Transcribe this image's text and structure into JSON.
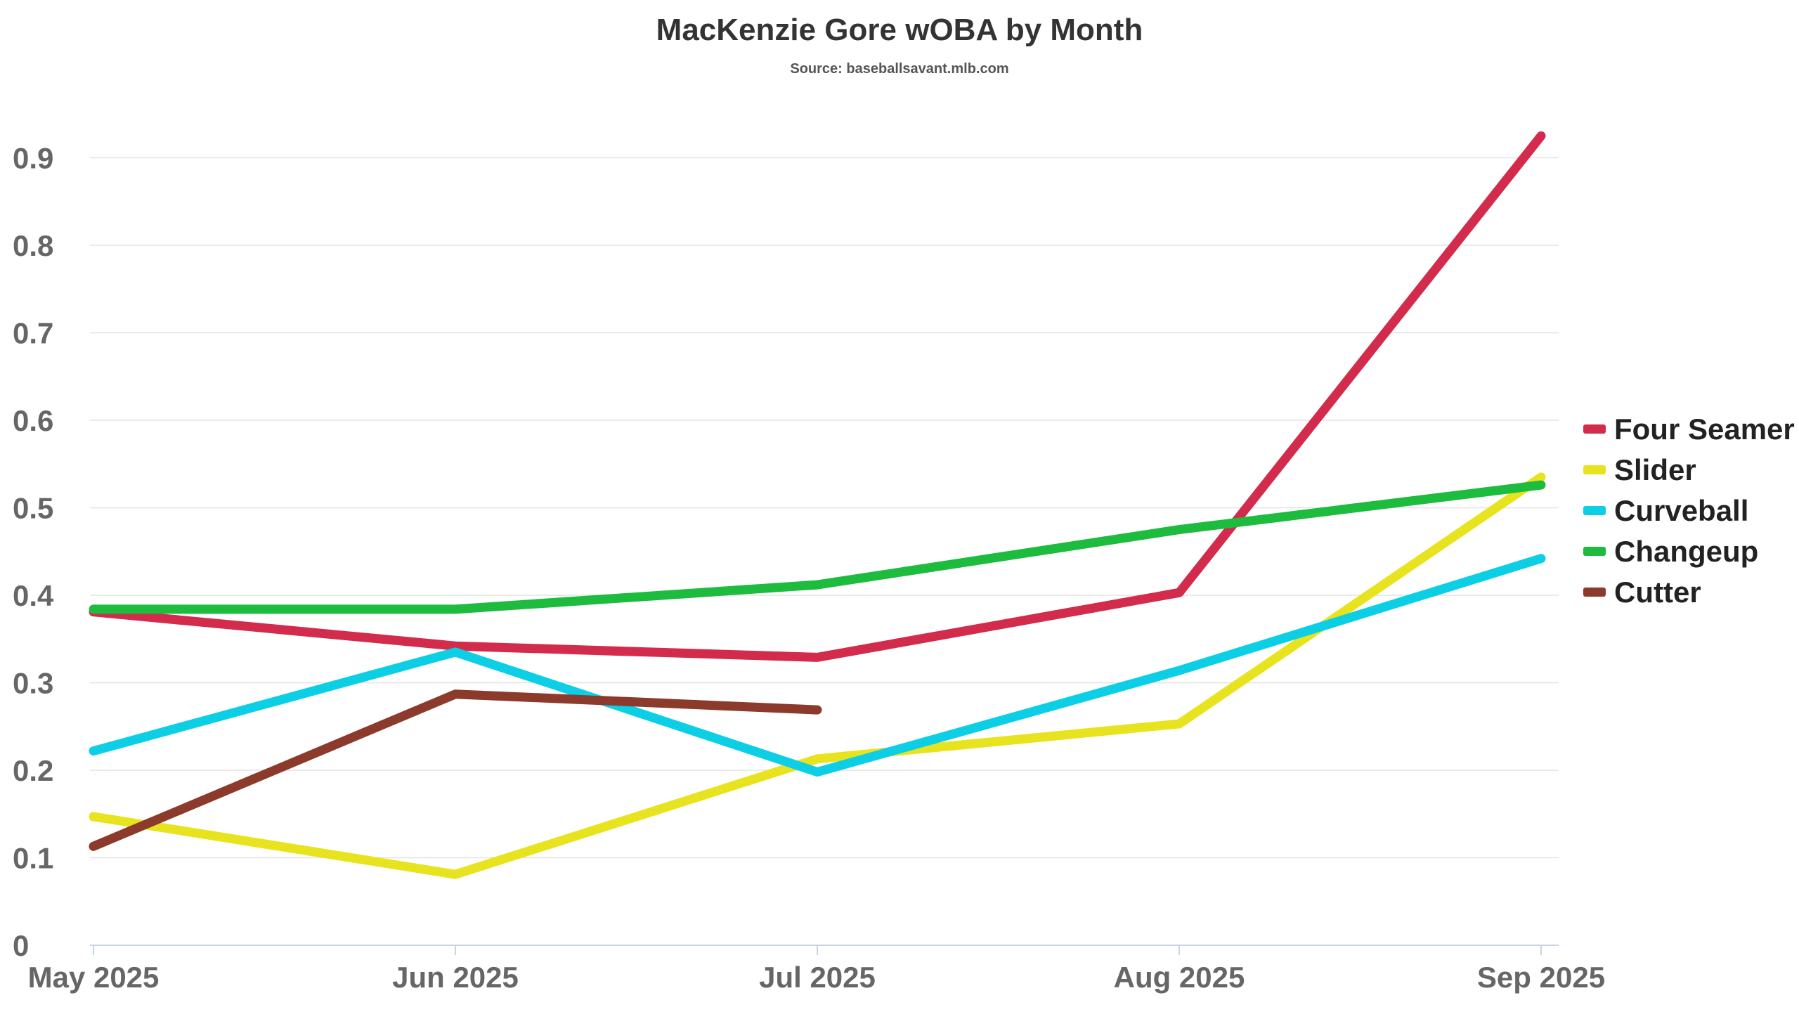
{
  "chart_data": {
    "type": "line",
    "title": "MacKenzie Gore wOBA by Month",
    "subtitle": "Source: baseballsavant.mlb.com",
    "xlabel": "",
    "ylabel": "",
    "categories": [
      "May 2025",
      "Jun 2025",
      "Jul 2025",
      "Aug 2025",
      "Sep 2025"
    ],
    "ylim": [
      0,
      0.9
    ],
    "yticks": [
      0,
      0.1,
      0.2,
      0.3,
      0.4,
      0.5,
      0.6,
      0.7,
      0.8,
      0.9
    ],
    "ytick_labels": [
      "0",
      "0.1",
      "0.2",
      "0.3",
      "0.4",
      "0.5",
      "0.6",
      "0.7",
      "0.8",
      "0.9"
    ],
    "grid": true,
    "legend_position": "right",
    "series": [
      {
        "name": "Four Seamer",
        "color": "#d22b4c",
        "values": [
          0.381,
          0.342,
          0.329,
          0.403,
          0.925
        ]
      },
      {
        "name": "Slider",
        "color": "#e8e31f",
        "values": [
          0.147,
          0.081,
          0.213,
          0.253,
          0.535
        ]
      },
      {
        "name": "Curveball",
        "color": "#0ccfe6",
        "values": [
          0.222,
          0.335,
          0.198,
          0.314,
          0.442
        ]
      },
      {
        "name": "Changeup",
        "color": "#1dbb3e",
        "values": [
          0.384,
          0.384,
          0.412,
          0.475,
          0.526
        ]
      },
      {
        "name": "Cutter",
        "color": "#8b3a2b",
        "values": [
          0.113,
          0.287,
          0.269,
          null,
          null
        ]
      }
    ]
  }
}
